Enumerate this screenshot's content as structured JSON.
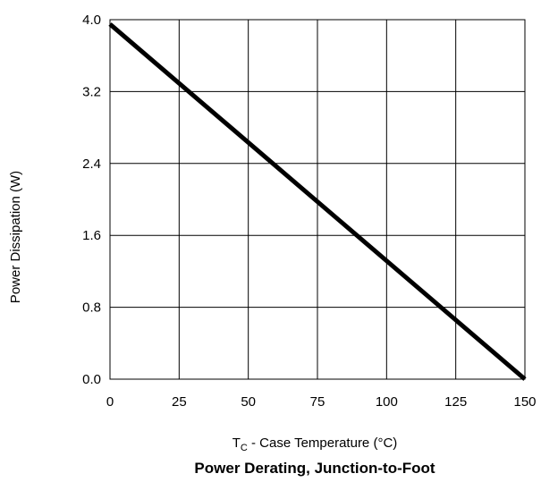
{
  "chart_data": {
    "type": "line",
    "title": "Power Derating, Junction-to-Foot",
    "xlabel": {
      "main": "T",
      "sub": "C",
      "rest": " - Case Temperature (°C)"
    },
    "ylabel": "Power Dissipation (W)",
    "xlim": [
      0,
      150
    ],
    "ylim": [
      0,
      4.0
    ],
    "x_ticks": [
      0,
      25,
      50,
      75,
      100,
      125,
      150
    ],
    "x_tick_labels": [
      "0",
      "25",
      "50",
      "75",
      "100",
      "125",
      "150"
    ],
    "y_ticks": [
      0,
      0.8,
      1.6,
      2.4,
      3.2,
      4.0
    ],
    "y_tick_labels": [
      "0.0",
      "0.8",
      "1.6",
      "2.4",
      "3.2",
      "4.0"
    ],
    "grid": true,
    "series": [
      {
        "x": [
          0,
          150
        ],
        "y": [
          3.95,
          0
        ],
        "color": "#000000"
      }
    ]
  }
}
